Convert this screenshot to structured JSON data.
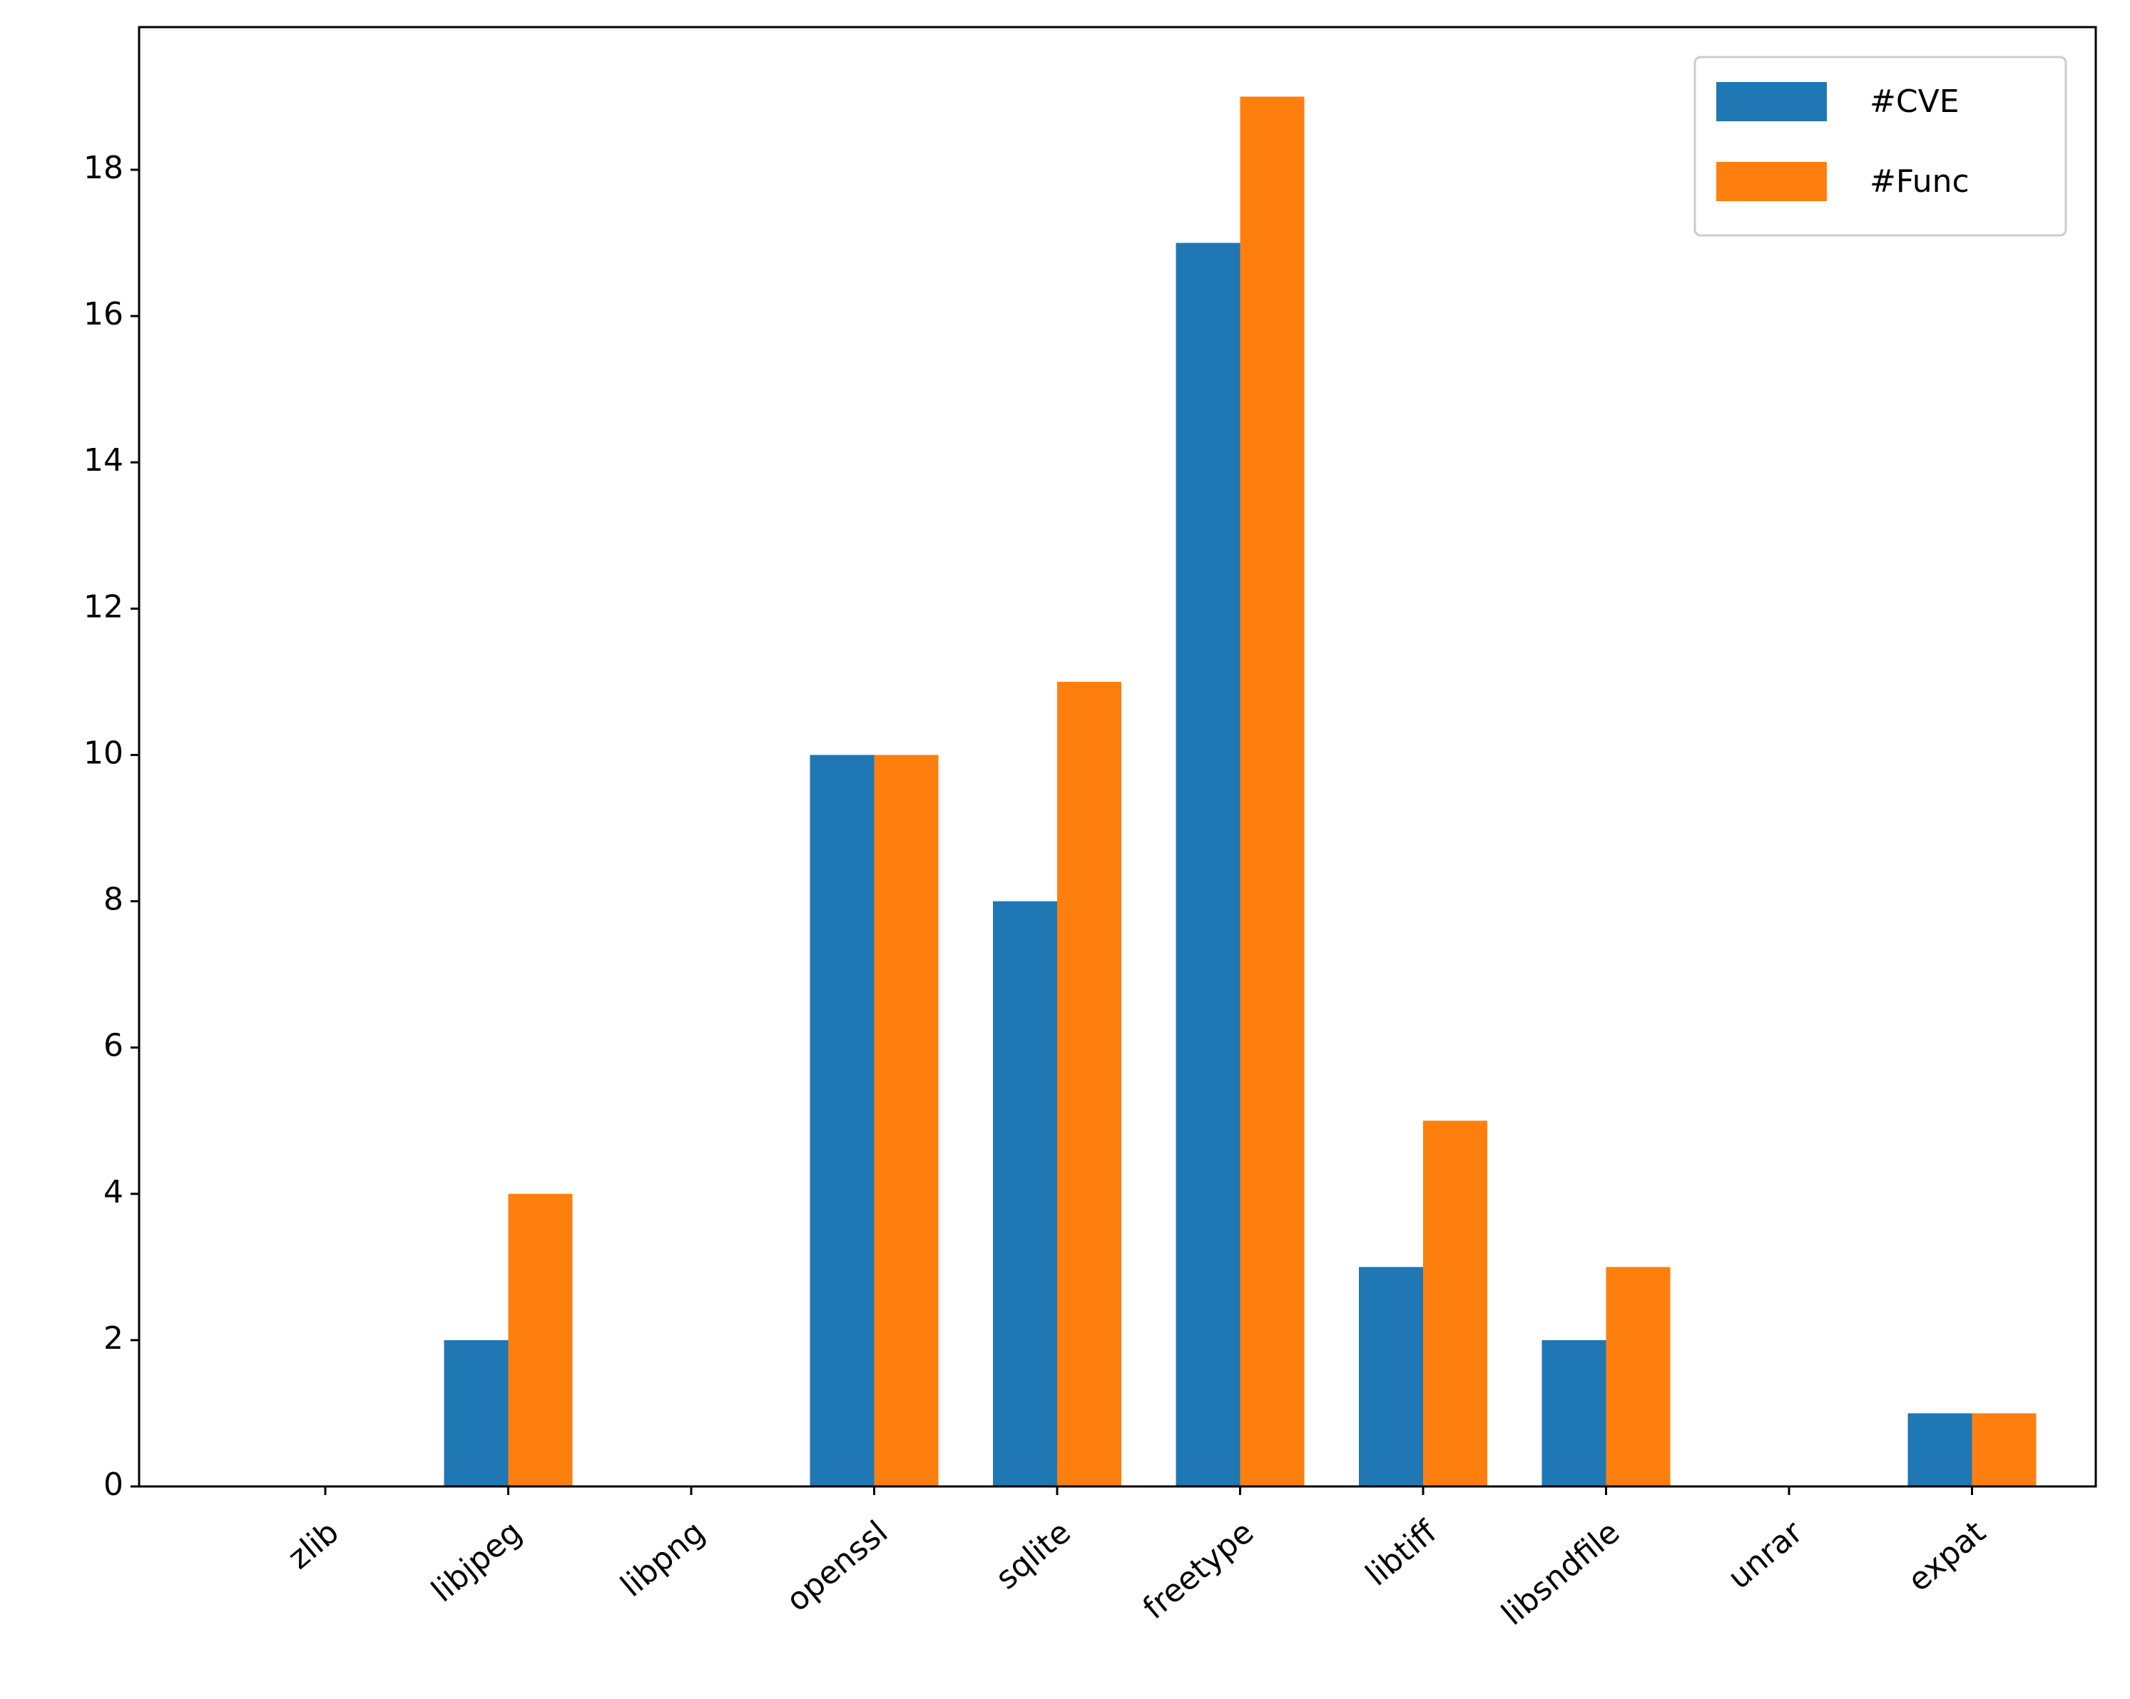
{
  "chart_data": {
    "type": "bar",
    "categories": [
      "zlib",
      "libjpeg",
      "libpng",
      "openssl",
      "sqlite",
      "freetype",
      "libtiff",
      "libsndfile",
      "unrar",
      "expat"
    ],
    "series": [
      {
        "name": "#CVE",
        "color": "#1f77b4",
        "values": [
          0,
          2,
          0,
          10,
          8,
          17,
          3,
          2,
          0,
          1
        ]
      },
      {
        "name": "#Func",
        "color": "#ff7f0e",
        "values": [
          0,
          4,
          0,
          10,
          11,
          19,
          5,
          3,
          0,
          1
        ]
      }
    ],
    "ylim": [
      0,
      19.95
    ],
    "yticks": [
      0,
      2,
      4,
      6,
      8,
      10,
      12,
      14,
      16,
      18
    ],
    "legend": "upper right",
    "grid": false
  }
}
